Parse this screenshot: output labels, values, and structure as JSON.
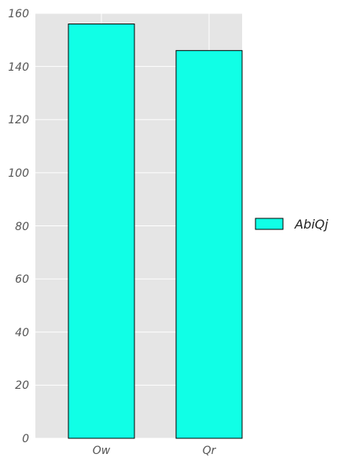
{
  "chart_data": {
    "type": "bar",
    "categories": [
      "Ow",
      "Qr"
    ],
    "series": [
      {
        "name": "AbiQj",
        "values": [
          156,
          146
        ]
      }
    ],
    "ylim": [
      0,
      160
    ],
    "yticks": [
      0,
      20,
      40,
      60,
      80,
      100,
      120,
      140,
      160
    ],
    "yticks_labels": [
      "0",
      "20",
      "40",
      "60",
      "80",
      "100",
      "120",
      "140",
      "160"
    ],
    "grid": true,
    "legend_position": "right",
    "colors": {
      "bar_fill": "#10FFE6",
      "bar_edge": "#000000",
      "plot_bg": "#E5E5E5",
      "grid": "#FFFFFF"
    }
  }
}
